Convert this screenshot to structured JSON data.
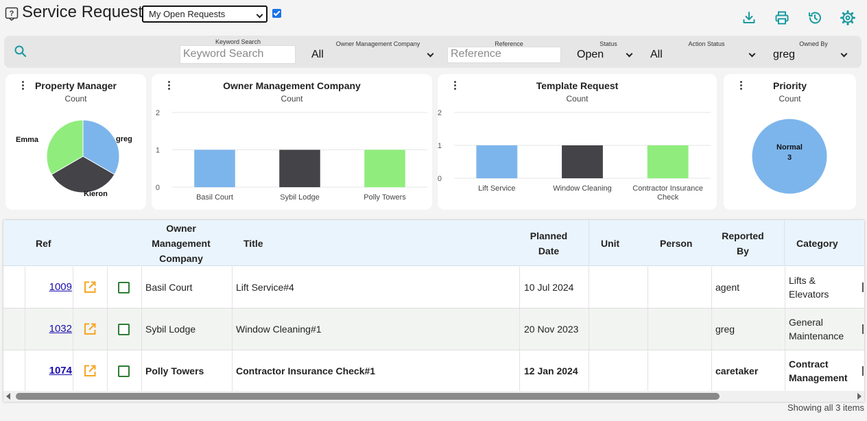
{
  "header": {
    "title": "Service Request",
    "view_select": "My Open Requests",
    "checkbox_checked": true
  },
  "toolbar": {
    "icons": [
      "download-icon",
      "print-icon",
      "history-icon",
      "settings-icon"
    ],
    "accent": "#1a9aa0"
  },
  "filters": {
    "keyword": {
      "label": "Keyword Search",
      "placeholder": "Keyword Search"
    },
    "owner_company": {
      "label": "Owner Management Company",
      "value": "All"
    },
    "reference": {
      "label": "Reference",
      "placeholder": "Reference"
    },
    "status": {
      "label": "Status",
      "value": "Open"
    },
    "action_status": {
      "label": "Action Status",
      "value": "All"
    },
    "owned_by": {
      "label": "Owned By",
      "value": "greg"
    }
  },
  "charts": {
    "property_manager": {
      "title": "Property Manager",
      "subtitle": "Count"
    },
    "owner_company": {
      "title": "Owner Management Company",
      "subtitle": "Count"
    },
    "template_request": {
      "title": "Template Request",
      "subtitle": "Count"
    },
    "priority": {
      "title": "Priority",
      "subtitle": "Count"
    }
  },
  "chart_data": [
    {
      "type": "pie",
      "title": "Property Manager",
      "subtitle": "Count",
      "labels": [
        "greg",
        "Kieron",
        "Emma"
      ],
      "values": [
        1,
        1,
        1
      ],
      "colors": [
        "#7cb5ec",
        "#434348",
        "#90ed7d"
      ]
    },
    {
      "type": "bar",
      "title": "Owner Management Company",
      "subtitle": "Count",
      "categories": [
        "Basil Court",
        "Sybil Lodge",
        "Polly Towers"
      ],
      "values": [
        1,
        1,
        1
      ],
      "colors": [
        "#7cb5ec",
        "#434348",
        "#90ed7d"
      ],
      "ylim": [
        0,
        2
      ],
      "yticks": [
        "0",
        "1",
        "2"
      ],
      "grid": true
    },
    {
      "type": "bar",
      "title": "Template Request",
      "subtitle": "Count",
      "categories": [
        "Lift Service",
        "Window Cleaning",
        "Contractor Insurance Check"
      ],
      "values": [
        1,
        1,
        1
      ],
      "colors": [
        "#7cb5ec",
        "#434348",
        "#90ed7d"
      ],
      "ylim": [
        0,
        2
      ],
      "yticks": [
        "0",
        "1",
        "2"
      ],
      "grid": true
    },
    {
      "type": "pie",
      "title": "Priority",
      "subtitle": "Count",
      "labels": [
        "Normal"
      ],
      "values": [
        3
      ],
      "colors": [
        "#7cb5ec"
      ]
    }
  ],
  "table": {
    "columns": {
      "ref": "Ref",
      "owner": "Owner Management Company",
      "title": "Title",
      "planned": "Planned Date",
      "unit": "Unit",
      "person": "Person",
      "reported": "Reported By",
      "category": "Category"
    },
    "rows": [
      {
        "ref": "1009",
        "owner": "Basil Court",
        "title": "Lift Service#4",
        "planned": "10 Jul 2024",
        "unit": "",
        "person": "",
        "reported": "agent",
        "category": "Lifts & Elevators",
        "bold": false
      },
      {
        "ref": "1032",
        "owner": "Sybil Lodge",
        "title": "Window Cleaning#1",
        "planned": "20 Nov 2023",
        "unit": "",
        "person": "",
        "reported": "greg",
        "category": "General Maintenance",
        "bold": false
      },
      {
        "ref": "1074",
        "owner": "Polly Towers",
        "title": "Contractor Insurance Check#1",
        "planned": "12 Jan 2024",
        "unit": "",
        "person": "",
        "reported": "caretaker",
        "category": "Contract Management",
        "bold": true
      }
    ],
    "footer": "Showing all 3 items"
  }
}
